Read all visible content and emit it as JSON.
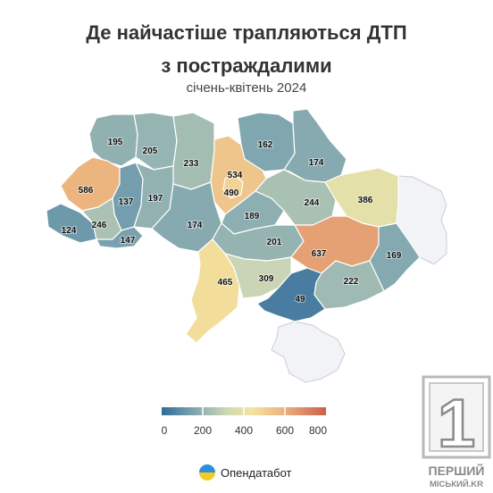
{
  "title_line1": "Де найчастіше трапляються ДТП",
  "title_line2": "з постраждалими",
  "subtitle": "січень-квітень 2024",
  "legend": {
    "min": 0,
    "max": 800,
    "ticks": [
      "0",
      "200",
      "400",
      "600",
      "800"
    ],
    "colors": [
      "#2f6b9a",
      "#7fa6b0",
      "#cfd9b5",
      "#f3e5a1",
      "#ebb07c",
      "#c9604a"
    ]
  },
  "inactive_color": "#f2f3f7",
  "regions": [
    {
      "id": "volyn",
      "value": 195
    },
    {
      "id": "rivne",
      "value": 205
    },
    {
      "id": "zhytomyr",
      "value": 233
    },
    {
      "id": "kyiv-oblast",
      "value": 534
    },
    {
      "id": "kyiv-city",
      "value": 490
    },
    {
      "id": "chernihiv",
      "value": 162
    },
    {
      "id": "sumy",
      "value": 174
    },
    {
      "id": "kharkiv",
      "value": 386
    },
    {
      "id": "lviv",
      "value": 586
    },
    {
      "id": "ternopil",
      "value": 137
    },
    {
      "id": "khmelnytskyi",
      "value": 197
    },
    {
      "id": "vinnytsia",
      "value": 174
    },
    {
      "id": "cherkasy",
      "value": 189
    },
    {
      "id": "poltava",
      "value": 244
    },
    {
      "id": "zakarpattia",
      "value": 124
    },
    {
      "id": "ivano-frankivsk",
      "value": 246
    },
    {
      "id": "chernivtsi",
      "value": 147
    },
    {
      "id": "kirovohrad",
      "value": 201
    },
    {
      "id": "dnipropetrovsk",
      "value": 637
    },
    {
      "id": "donetsk",
      "value": 169
    },
    {
      "id": "odesa",
      "value": 465
    },
    {
      "id": "mykolaiv",
      "value": 309
    },
    {
      "id": "zaporizhzhia",
      "value": 222
    },
    {
      "id": "kherson",
      "value": 49
    }
  ],
  "source": {
    "name": "Опендатабот"
  },
  "logo": {
    "digit": "1",
    "line1": "ПЕРШИЙ",
    "line2": "МІСЬКИЙ.KR"
  }
}
